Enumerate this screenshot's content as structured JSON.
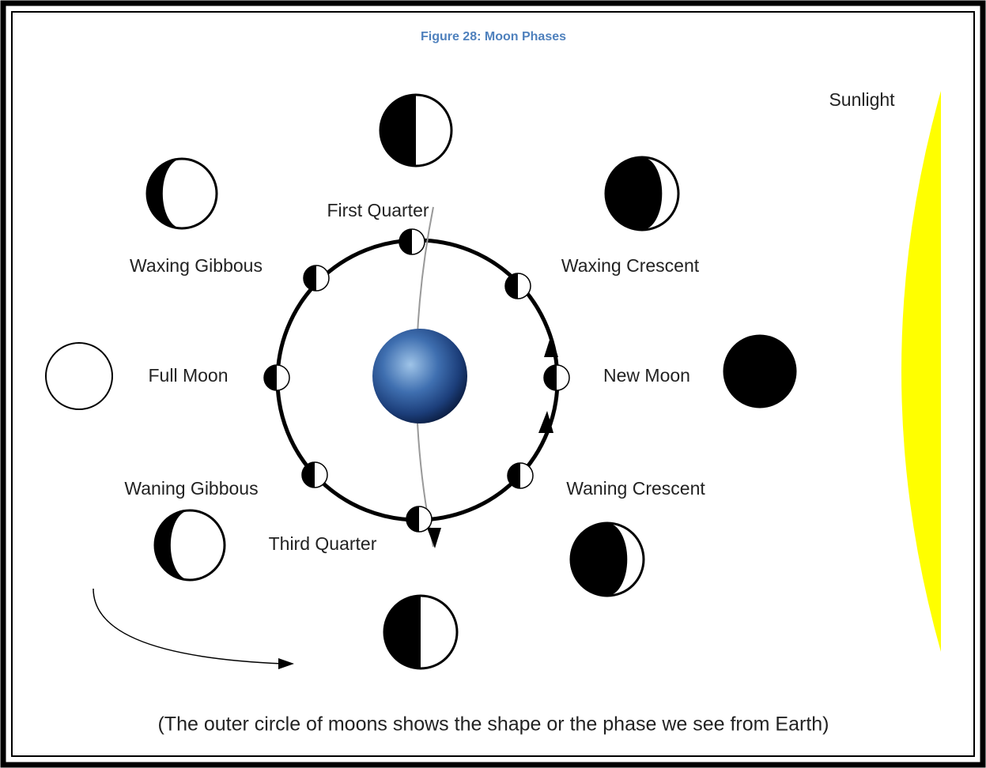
{
  "header": {
    "title": "Figure 28: Moon Phases"
  },
  "labels": {
    "sunlight": "Sunlight",
    "first_quarter": "First Quarter",
    "waxing_gibbous": "Waxing Gibbous",
    "waxing_crescent": "Waxing Crescent",
    "full_moon": "Full Moon",
    "new_moon": "New Moon",
    "waning_gibbous": "Waning Gibbous",
    "waning_crescent": "Waning Crescent",
    "third_quarter": "Third Quarter"
  },
  "caption": "(The outer circle of moons shows the shape or the phase we see from Earth)"
}
